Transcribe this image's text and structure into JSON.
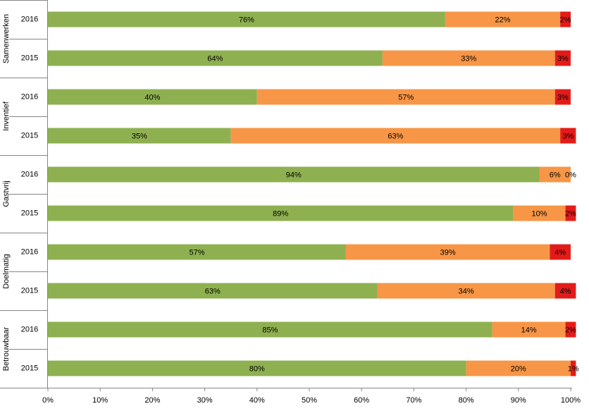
{
  "chart_data": {
    "type": "stacked-barh",
    "groups": [
      {
        "name": "Samenwerken",
        "categories": [
          "2016",
          "2015"
        ]
      },
      {
        "name": "Inventief",
        "categories": [
          "2016",
          "2015"
        ]
      },
      {
        "name": "Gastvrij",
        "categories": [
          "2016",
          "2015"
        ]
      },
      {
        "name": "Doelmatig",
        "categories": [
          "2016",
          "2015"
        ]
      },
      {
        "name": "Betrouwbaar",
        "categories": [
          "2016",
          "2015"
        ]
      }
    ],
    "series": [
      {
        "color": "#8fb050",
        "values": [
          76,
          64,
          40,
          35,
          94,
          89,
          57,
          63,
          85,
          80
        ],
        "value_labels": [
          "76%",
          "64%",
          "40%",
          "35%",
          "94%",
          "89%",
          "57%",
          "63%",
          "85%",
          "80%"
        ]
      },
      {
        "color": "#f79646",
        "values": [
          22,
          33,
          57,
          63,
          6,
          10,
          39,
          34,
          14,
          20
        ],
        "value_labels": [
          "22%",
          "33%",
          "57%",
          "63%",
          "6%",
          "10%",
          "39%",
          "34%",
          "14%",
          "20%"
        ]
      },
      {
        "color": "#e31c19",
        "values": [
          2,
          3,
          3,
          3,
          0,
          2,
          4,
          4,
          2,
          1
        ],
        "value_labels": [
          "2%",
          "3%",
          "3%",
          "3%",
          "0%",
          "2%",
          "4%",
          "4%",
          "2%",
          "1%"
        ]
      }
    ],
    "xlim": [
      0,
      100
    ],
    "xticks": [
      {
        "value": 0,
        "label": "0%"
      },
      {
        "value": 10,
        "label": "10%"
      },
      {
        "value": 20,
        "label": "20%"
      },
      {
        "value": 30,
        "label": "30%"
      },
      {
        "value": 40,
        "label": "40%"
      },
      {
        "value": 50,
        "label": "50%"
      },
      {
        "value": 60,
        "label": "60%"
      },
      {
        "value": 70,
        "label": "70%"
      },
      {
        "value": 80,
        "label": "80%"
      },
      {
        "value": 90,
        "label": "90%"
      },
      {
        "value": 100,
        "label": "100%"
      }
    ]
  }
}
